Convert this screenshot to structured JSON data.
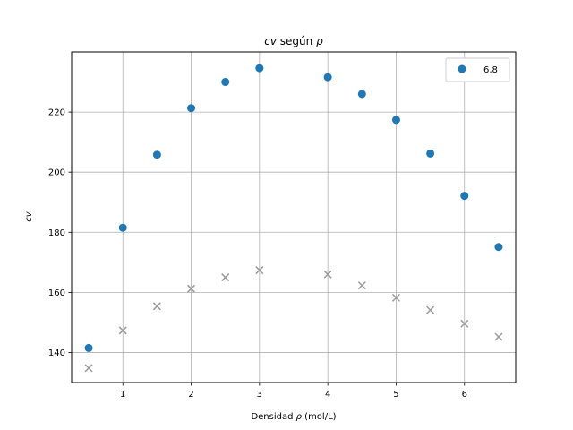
{
  "chart_data": {
    "type": "scatter",
    "title_math": "cv",
    "title_rest": " según ",
    "title_rho": "ρ",
    "xlabel_prefix": "Densidad ",
    "xlabel_rho": "ρ",
    "xlabel_suffix": " (mol/L)",
    "ylabel": "cv",
    "xlim": [
      0.25,
      6.75
    ],
    "ylim": [
      130,
      240
    ],
    "xticks": [
      1,
      2,
      3,
      4,
      5,
      6
    ],
    "yticks": [
      140,
      160,
      180,
      200,
      220
    ],
    "grid": true,
    "legend_position": "top-right",
    "series": [
      {
        "name": "6,8",
        "marker": "circle",
        "color": "#1f77b4",
        "x": [
          0.5,
          1.0,
          1.5,
          2.0,
          2.5,
          3.0,
          4.0,
          4.5,
          5.0,
          5.5,
          6.0,
          6.5
        ],
        "y": [
          141.5,
          181.5,
          205.8,
          221.3,
          230.0,
          234.6,
          231.6,
          226.0,
          217.4,
          206.2,
          192.1,
          175.1
        ]
      },
      {
        "marker": "x",
        "color": "#999999",
        "x": [
          0.5,
          1.0,
          1.5,
          2.0,
          2.5,
          3.0,
          4.0,
          4.5,
          5.0,
          5.5,
          6.0,
          6.5
        ],
        "y": [
          134.8,
          147.3,
          155.4,
          161.2,
          165.0,
          167.4,
          166.0,
          162.3,
          158.2,
          154.1,
          149.6,
          145.2
        ]
      }
    ]
  }
}
